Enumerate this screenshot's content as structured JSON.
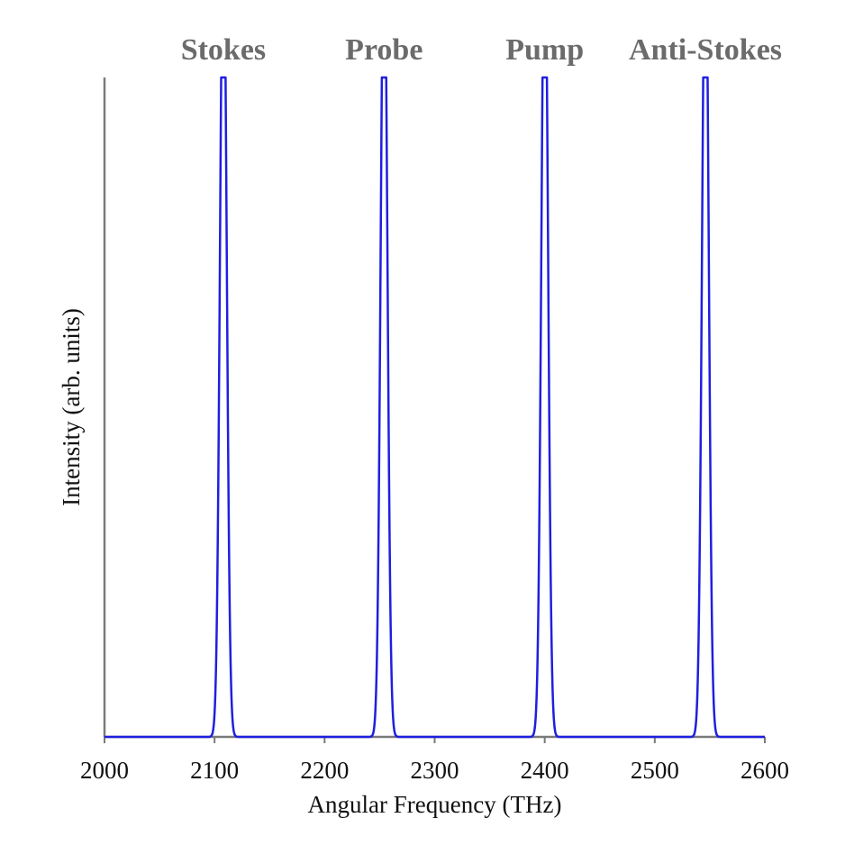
{
  "chart_data": {
    "type": "line",
    "xlabel": "Angular Frequency (THz)",
    "ylabel": "Intensity (arb. units)",
    "xlim": [
      2000,
      2600
    ],
    "ylim": [
      0,
      1
    ],
    "xticks": [
      2000,
      2100,
      2200,
      2300,
      2400,
      2500,
      2600
    ],
    "grid": false,
    "line_color": "#1f1fe0",
    "axis_color": "#7a7a7a",
    "peaks": [
      {
        "label": "Stokes",
        "center": 2108,
        "width": 3
      },
      {
        "label": "Probe",
        "center": 2254,
        "width": 3
      },
      {
        "label": "Pump",
        "center": 2400,
        "width": 3
      },
      {
        "label": "Anti-Stokes",
        "center": 2546,
        "width": 3
      }
    ]
  }
}
